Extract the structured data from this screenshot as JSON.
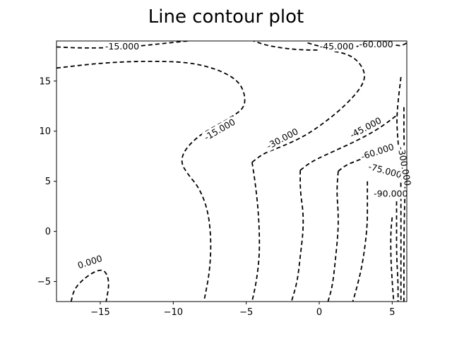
{
  "chart_data": {
    "type": "contour",
    "title": "Line contour plot",
    "xlabel": "",
    "ylabel": "",
    "xlim": [
      -18,
      6
    ],
    "ylim": [
      -7,
      19
    ],
    "xticks": [
      -15,
      -10,
      -5,
      0,
      5
    ],
    "xtick_labels": [
      "−15",
      "−10",
      "−5",
      "0",
      "5"
    ],
    "yticks": [
      -5,
      0,
      5,
      10,
      15
    ],
    "ytick_labels": [
      "−5",
      "0",
      "5",
      "10",
      "15"
    ],
    "grid": false,
    "line_style": "dashed",
    "line_color": "#000000",
    "levels": [
      {
        "level": "0.000",
        "points": [
          [
            -17.0,
            -7.0
          ],
          [
            -16.8,
            -5.8
          ],
          [
            -16.2,
            -4.8
          ],
          [
            -15.4,
            -4.0
          ],
          [
            -14.8,
            -3.8
          ],
          [
            -14.5,
            -4.4
          ],
          [
            -14.4,
            -5.4
          ],
          [
            -14.6,
            -7.0
          ]
        ]
      },
      {
        "level": "-15.000",
        "points": [
          [
            -18.0,
            18.4
          ],
          [
            -16.5,
            18.3
          ],
          [
            -15.0,
            18.3
          ],
          [
            -13.0,
            18.4
          ],
          [
            -11.0,
            18.7
          ],
          [
            -9.0,
            19.0
          ]
        ]
      },
      {
        "level": "-15.000",
        "points": [
          [
            -18.0,
            16.3
          ],
          [
            -15.0,
            16.8
          ],
          [
            -12.0,
            17.0
          ],
          [
            -9.0,
            16.9
          ],
          [
            -7.0,
            16.2
          ],
          [
            -5.6,
            15.1
          ],
          [
            -5.1,
            13.8
          ],
          [
            -5.1,
            12.4
          ],
          [
            -5.9,
            11.5
          ],
          [
            -7.0,
            10.6
          ],
          [
            -8.2,
            9.6
          ],
          [
            -9.2,
            8.2
          ],
          [
            -9.5,
            6.9
          ],
          [
            -9.0,
            5.7
          ],
          [
            -8.2,
            4.3
          ],
          [
            -7.6,
            2.0
          ],
          [
            -7.4,
            -1.0
          ],
          [
            -7.5,
            -4.0
          ],
          [
            -7.9,
            -7.0
          ]
        ]
      },
      {
        "level": "-30.000",
        "points": [
          [
            -4.6,
            6.9
          ],
          [
            -3.8,
            7.8
          ],
          [
            -2.5,
            8.5
          ],
          [
            -1.0,
            9.5
          ],
          [
            0.5,
            11.0
          ],
          [
            1.8,
            12.6
          ],
          [
            2.8,
            14.2
          ],
          [
            3.2,
            15.5
          ],
          [
            2.8,
            16.8
          ],
          [
            2.0,
            17.7
          ],
          [
            0.5,
            18.1
          ],
          [
            -1.5,
            18.1
          ],
          [
            -3.5,
            18.5
          ],
          [
            -4.5,
            19.0
          ]
        ]
      },
      {
        "level": "-30.000",
        "points": [
          [
            -4.6,
            6.9
          ],
          [
            -4.4,
            5.0
          ],
          [
            -4.2,
            2.5
          ],
          [
            -4.1,
            0.0
          ],
          [
            -4.1,
            -2.5
          ],
          [
            -4.3,
            -5.0
          ],
          [
            -4.6,
            -7.0
          ]
        ]
      },
      {
        "level": "-45.000",
        "points": [
          [
            -1.3,
            6.1
          ],
          [
            -0.5,
            7.0
          ],
          [
            1.0,
            8.0
          ],
          [
            2.5,
            9.0
          ],
          [
            3.8,
            10.0
          ],
          [
            4.8,
            11.0
          ],
          [
            5.4,
            11.7
          ]
        ]
      },
      {
        "level": "-45.000",
        "points": [
          [
            -1.3,
            6.1
          ],
          [
            -1.3,
            4.0
          ],
          [
            -1.1,
            2.0
          ],
          [
            -1.1,
            0.0
          ],
          [
            -1.3,
            -2.5
          ],
          [
            -1.5,
            -5.0
          ],
          [
            -1.9,
            -7.0
          ]
        ]
      },
      {
        "level": "-45.000",
        "points": [
          [
            -0.8,
            18.8
          ],
          [
            0.2,
            18.4
          ],
          [
            1.2,
            18.3
          ],
          [
            2.6,
            18.4
          ],
          [
            3.4,
            18.8
          ],
          [
            4.0,
            19.0
          ]
        ]
      },
      {
        "level": "-60.000",
        "points": [
          [
            1.3,
            6.0
          ],
          [
            1.8,
            6.6
          ],
          [
            3.0,
            7.3
          ],
          [
            4.6,
            8.0
          ],
          [
            5.5,
            8.2
          ],
          [
            6.0,
            8.3
          ]
        ]
      },
      {
        "level": "-60.000",
        "points": [
          [
            1.3,
            6.0
          ],
          [
            1.2,
            4.0
          ],
          [
            1.3,
            2.0
          ],
          [
            1.3,
            0.0
          ],
          [
            1.1,
            -3.0
          ],
          [
            0.9,
            -5.5
          ],
          [
            0.6,
            -7.0
          ]
        ]
      },
      {
        "level": "-60.000",
        "points": [
          [
            4.3,
            18.9
          ],
          [
            5.2,
            18.6
          ],
          [
            5.6,
            18.5
          ],
          [
            6.0,
            18.8
          ]
        ]
      },
      {
        "level": "-75.000",
        "points": [
          [
            3.3,
            5.0
          ],
          [
            3.3,
            3.0
          ],
          [
            3.3,
            0.5
          ],
          [
            3.0,
            -3.0
          ],
          [
            2.6,
            -5.5
          ],
          [
            2.3,
            -7.0
          ]
        ]
      },
      {
        "level": "-90.000",
        "points": [
          [
            5.0,
            1.4
          ],
          [
            4.9,
            0.0
          ],
          [
            4.9,
            -2.5
          ],
          [
            5.0,
            -5.0
          ],
          [
            5.1,
            -7.0
          ]
        ]
      },
      {
        "level": "-300.000",
        "points": [
          [
            5.3,
            3.0
          ],
          [
            5.3,
            0.5
          ],
          [
            5.3,
            -2.5
          ],
          [
            5.4,
            -5.0
          ],
          [
            5.4,
            -7.0
          ]
        ]
      },
      {
        "level": "-300.000",
        "points": [
          [
            5.6,
            15.4
          ],
          [
            5.4,
            13.0
          ],
          [
            5.3,
            11.0
          ],
          [
            5.4,
            9.0
          ],
          [
            5.5,
            7.0
          ],
          [
            5.6,
            5.0
          ],
          [
            5.6,
            3.0
          ],
          [
            5.6,
            0.0
          ],
          [
            5.6,
            -3.0
          ],
          [
            5.6,
            -7.0
          ]
        ]
      },
      {
        "level": "-300.000",
        "points": [
          [
            5.8,
            12.4
          ],
          [
            5.8,
            9.0
          ],
          [
            5.9,
            5.0
          ],
          [
            5.8,
            0.0
          ],
          [
            5.8,
            -7.0
          ]
        ]
      }
    ],
    "contour_labels": [
      {
        "text": "0.000",
        "x": -15.7,
        "y": -3.1,
        "angle": -18
      },
      {
        "text": "-15.000",
        "x": -13.5,
        "y": 18.4,
        "angle": 0
      },
      {
        "text": "-15.000",
        "x": -6.8,
        "y": 10.1,
        "angle": -30
      },
      {
        "text": "-30.000",
        "x": -2.5,
        "y": 9.2,
        "angle": -28
      },
      {
        "text": "-45.000",
        "x": 1.2,
        "y": 18.4,
        "angle": 0
      },
      {
        "text": "-45.000",
        "x": 3.2,
        "y": 10.3,
        "angle": -28
      },
      {
        "text": "-60.000",
        "x": 3.9,
        "y": 18.6,
        "angle": 0
      },
      {
        "text": "-60.000",
        "x": 4.0,
        "y": 7.9,
        "angle": -18
      },
      {
        "text": "-75.000",
        "x": 4.5,
        "y": 6.0,
        "angle": 15
      },
      {
        "text": "-90.000",
        "x": 4.9,
        "y": 3.7,
        "angle": 0
      },
      {
        "text": "-300.000",
        "x": 5.8,
        "y": 6.5,
        "angle": 80
      }
    ]
  }
}
